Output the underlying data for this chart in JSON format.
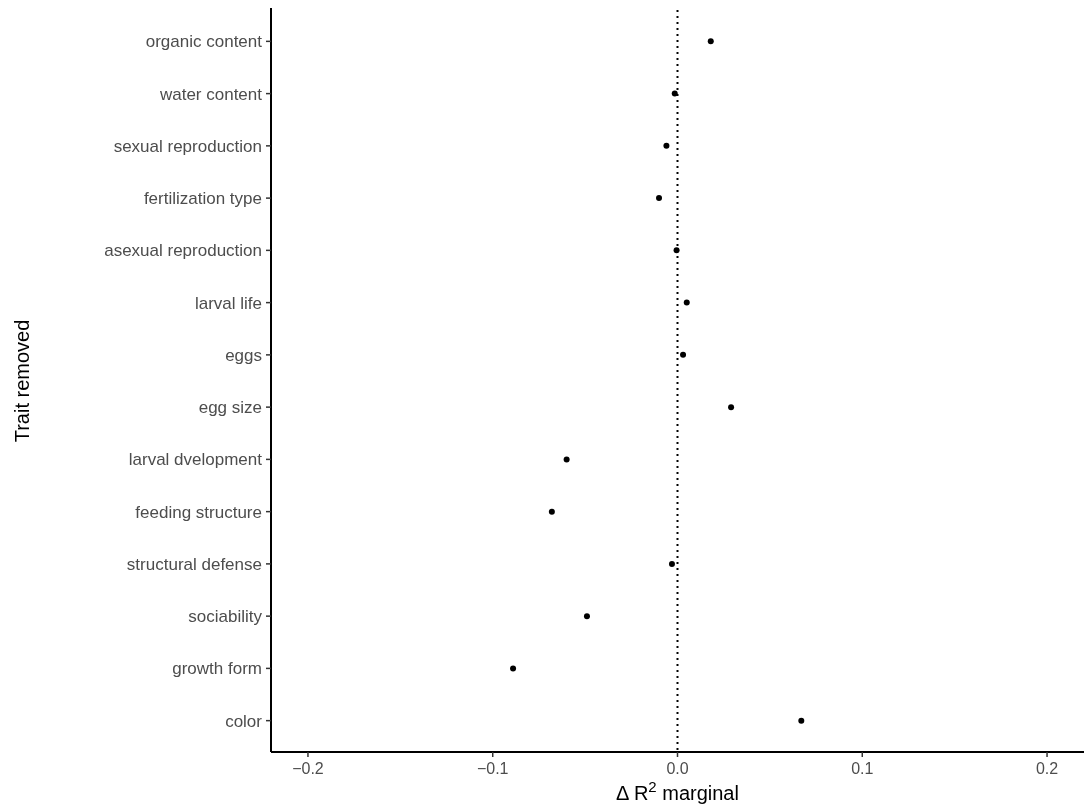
{
  "chart_data": {
    "type": "scatter",
    "orientation": "horizontal",
    "xlabel": "Δ R$^{2}$ marginal",
    "ylabel": "Trait removed",
    "categories": [
      "organic content",
      "water content",
      "sexual reproduction",
      "fertilization type",
      "asexual reproduction",
      "larval life",
      "eggs",
      "egg size",
      "larval dvelopment",
      "feeding structure",
      "structural defense",
      "sociability",
      "growth form",
      "color"
    ],
    "values": [
      0.018,
      -0.0015,
      -0.006,
      -0.01,
      -0.0005,
      0.005,
      0.003,
      0.029,
      -0.06,
      -0.068,
      -0.003,
      -0.049,
      -0.089,
      0.067
    ],
    "color": "#000000",
    "marker": "circle",
    "xlim": [
      -0.22,
      0.22
    ],
    "xticks": [
      {
        "value": -0.2,
        "label": "−0.2"
      },
      {
        "value": -0.1,
        "label": "−0.1"
      },
      {
        "value": 0,
        "label": "0.0"
      },
      {
        "value": 0.1,
        "label": "0.1"
      },
      {
        "value": 0.2,
        "label": "0.2"
      }
    ],
    "ref_lines": [
      {
        "axis": "x",
        "value": 0,
        "line_style": "dotted",
        "color": "#000000"
      }
    ],
    "grid": false
  }
}
